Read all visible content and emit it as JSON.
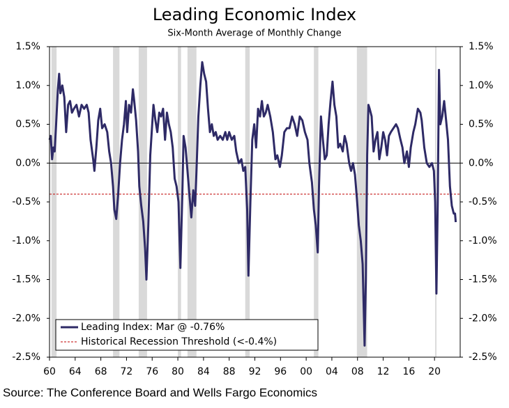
{
  "chart_data": {
    "type": "line",
    "title": "Leading Economic Index",
    "subtitle": "Six-Month Average of Monthly Change",
    "source": "Source: The Conference Board and Wells Fargo Economics",
    "xlim": [
      1960,
      2024
    ],
    "xticks": [
      {
        "value": 1960,
        "label": "60"
      },
      {
        "value": 1964,
        "label": "64"
      },
      {
        "value": 1968,
        "label": "68"
      },
      {
        "value": 1972,
        "label": "72"
      },
      {
        "value": 1976,
        "label": "76"
      },
      {
        "value": 1980,
        "label": "80"
      },
      {
        "value": 1984,
        "label": "84"
      },
      {
        "value": 1988,
        "label": "88"
      },
      {
        "value": 1992,
        "label": "92"
      },
      {
        "value": 1996,
        "label": "96"
      },
      {
        "value": 2000,
        "label": "00"
      },
      {
        "value": 2004,
        "label": "04"
      },
      {
        "value": 2008,
        "label": "08"
      },
      {
        "value": 2012,
        "label": "12"
      },
      {
        "value": 2016,
        "label": "16"
      },
      {
        "value": 2020,
        "label": "20"
      }
    ],
    "ylim": [
      -2.5,
      1.5
    ],
    "yticks": [
      {
        "value": 1.5,
        "label": "1.5%"
      },
      {
        "value": 1.0,
        "label": "1.0%"
      },
      {
        "value": 0.5,
        "label": "0.5%"
      },
      {
        "value": 0,
        "label": "0.0%"
      },
      {
        "value": -0.5,
        "label": "-0.5%"
      },
      {
        "value": -1.0,
        "label": "-1.0%"
      },
      {
        "value": -1.5,
        "label": "-1.5%"
      },
      {
        "value": -2.0,
        "label": "-2.0%"
      },
      {
        "value": -2.5,
        "label": "-2.5%"
      }
    ],
    "recessions": [
      [
        1960.3,
        1961.1
      ],
      [
        1969.9,
        1970.9
      ],
      [
        1973.9,
        1975.2
      ],
      [
        1980.0,
        1980.5
      ],
      [
        1981.5,
        1982.9
      ],
      [
        1990.5,
        1991.2
      ],
      [
        2001.2,
        2001.9
      ],
      [
        2007.9,
        2009.5
      ],
      [
        2020.1,
        2020.3
      ]
    ],
    "recession_color": "#d9d9d9",
    "threshold": {
      "name": "Historical Recession Threshold (<-0.4%)",
      "value": -0.4,
      "color": "#c00000"
    },
    "series": [
      {
        "name": "Leading Index: Mar @ -0.76%",
        "color": "#2e2a66",
        "x": [
          1960.0,
          1960.2,
          1960.4,
          1960.6,
          1960.8,
          1961.0,
          1961.3,
          1961.5,
          1961.7,
          1962.0,
          1962.3,
          1962.6,
          1962.9,
          1963.2,
          1963.5,
          1963.8,
          1964.2,
          1964.6,
          1965.0,
          1965.4,
          1965.8,
          1966.1,
          1966.4,
          1966.8,
          1967.0,
          1967.3,
          1967.6,
          1967.9,
          1968.2,
          1968.6,
          1969.0,
          1969.3,
          1969.6,
          1969.9,
          1970.1,
          1970.4,
          1970.7,
          1971.0,
          1971.3,
          1971.6,
          1971.9,
          1972.1,
          1972.4,
          1972.7,
          1973.0,
          1973.2,
          1973.5,
          1973.8,
          1974.0,
          1974.3,
          1974.6,
          1974.9,
          1975.1,
          1975.4,
          1975.7,
          1976.0,
          1976.2,
          1976.5,
          1976.8,
          1977.1,
          1977.4,
          1977.7,
          1978.0,
          1978.3,
          1978.6,
          1978.9,
          1979.2,
          1979.5,
          1979.8,
          1980.1,
          1980.4,
          1980.7,
          1980.9,
          1981.2,
          1981.5,
          1981.8,
          1982.1,
          1982.4,
          1982.7,
          1982.9,
          1983.2,
          1983.5,
          1983.8,
          1984.1,
          1984.4,
          1984.7,
          1985.0,
          1985.3,
          1985.6,
          1985.9,
          1986.2,
          1986.6,
          1987.0,
          1987.4,
          1987.7,
          1988.0,
          1988.4,
          1988.8,
          1989.1,
          1989.5,
          1989.9,
          1990.2,
          1990.5,
          1990.8,
          1991.0,
          1991.3,
          1991.6,
          1991.9,
          1992.2,
          1992.5,
          1992.8,
          1993.1,
          1993.4,
          1993.7,
          1994.0,
          1994.4,
          1994.8,
          1995.2,
          1995.5,
          1995.9,
          1996.2,
          1996.6,
          1997.0,
          1997.4,
          1997.8,
          1998.2,
          1998.6,
          1999.0,
          1999.4,
          1999.8,
          2000.2,
          2000.5,
          2000.9,
          2001.2,
          2001.5,
          2001.8,
          2002.0,
          2002.3,
          2002.6,
          2002.9,
          2003.2,
          2003.5,
          2003.8,
          2004.1,
          2004.4,
          2004.7,
          2005.0,
          2005.3,
          2005.7,
          2006.0,
          2006.3,
          2006.7,
          2007.0,
          2007.3,
          2007.6,
          2007.9,
          2008.2,
          2008.5,
          2008.8,
          2009.0,
          2009.1,
          2009.3,
          2009.5,
          2009.7,
          2009.9,
          2010.2,
          2010.5,
          2010.8,
          2011.1,
          2011.4,
          2011.7,
          2012.0,
          2012.3,
          2012.6,
          2012.9,
          2013.2,
          2013.6,
          2014.0,
          2014.3,
          2014.7,
          2015.0,
          2015.3,
          2015.7,
          2016.0,
          2016.3,
          2016.7,
          2017.0,
          2017.4,
          2017.8,
          2018.0,
          2018.4,
          2018.8,
          2019.2,
          2019.6,
          2019.9,
          2020.1,
          2020.3,
          2020.5,
          2020.7,
          2020.9,
          2021.2,
          2021.5,
          2021.8,
          2022.1,
          2022.4,
          2022.7,
          2023.0,
          2023.2,
          2023.3
        ],
        "values": [
          0.3,
          0.35,
          0.05,
          0.2,
          0.15,
          0.45,
          0.95,
          1.15,
          0.9,
          1.0,
          0.85,
          0.4,
          0.75,
          0.8,
          0.65,
          0.7,
          0.75,
          0.6,
          0.75,
          0.7,
          0.75,
          0.65,
          0.3,
          0.05,
          -0.1,
          0.2,
          0.55,
          0.7,
          0.45,
          0.5,
          0.4,
          0.15,
          0.0,
          -0.3,
          -0.6,
          -0.72,
          -0.4,
          0.0,
          0.3,
          0.5,
          0.8,
          0.4,
          0.75,
          0.65,
          0.95,
          0.8,
          0.55,
          0.15,
          -0.3,
          -0.55,
          -0.75,
          -1.1,
          -1.5,
          -0.8,
          0.1,
          0.5,
          0.75,
          0.55,
          0.4,
          0.65,
          0.6,
          0.7,
          0.3,
          0.65,
          0.5,
          0.4,
          0.2,
          -0.2,
          -0.3,
          -0.5,
          -1.35,
          -0.4,
          0.35,
          0.2,
          -0.1,
          -0.4,
          -0.7,
          -0.35,
          -0.55,
          -0.1,
          0.6,
          1.0,
          1.3,
          1.15,
          1.05,
          0.7,
          0.4,
          0.5,
          0.35,
          0.4,
          0.3,
          0.35,
          0.3,
          0.4,
          0.3,
          0.4,
          0.3,
          0.35,
          0.15,
          0.0,
          0.05,
          -0.1,
          -0.05,
          -0.6,
          -1.45,
          -0.5,
          0.3,
          0.5,
          0.2,
          0.7,
          0.6,
          0.8,
          0.6,
          0.65,
          0.75,
          0.6,
          0.4,
          0.05,
          0.1,
          -0.05,
          0.1,
          0.4,
          0.45,
          0.45,
          0.6,
          0.5,
          0.35,
          0.6,
          0.55,
          0.4,
          0.3,
          0.0,
          -0.25,
          -0.6,
          -0.8,
          -1.15,
          -0.3,
          0.6,
          0.3,
          0.05,
          0.1,
          0.5,
          0.8,
          1.05,
          0.75,
          0.6,
          0.2,
          0.25,
          0.15,
          0.35,
          0.25,
          0.0,
          -0.1,
          0.0,
          -0.15,
          -0.45,
          -0.8,
          -1.0,
          -1.3,
          -2.0,
          -2.35,
          -1.5,
          0.1,
          0.75,
          0.7,
          0.6,
          0.15,
          0.3,
          0.4,
          0.05,
          0.2,
          0.4,
          0.3,
          0.1,
          0.35,
          0.4,
          0.45,
          0.5,
          0.45,
          0.3,
          0.2,
          0.0,
          0.15,
          -0.05,
          0.2,
          0.4,
          0.5,
          0.7,
          0.65,
          0.55,
          0.2,
          0.0,
          -0.05,
          0.0,
          -0.1,
          -0.5,
          -1.68,
          -0.5,
          1.2,
          0.5,
          0.6,
          0.8,
          0.55,
          0.3,
          -0.3,
          -0.55,
          -0.65,
          -0.65,
          -0.76
        ]
      }
    ]
  }
}
